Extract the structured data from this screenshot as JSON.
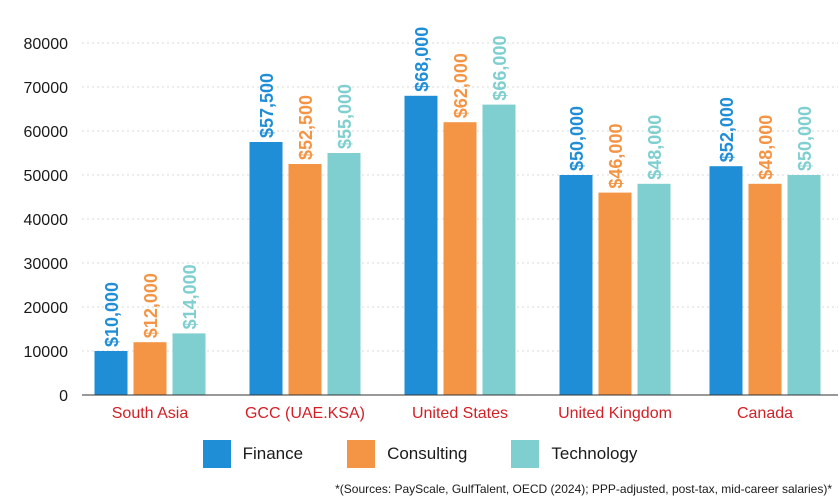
{
  "chart_data": {
    "type": "bar",
    "categories": [
      "South Asia",
      "GCC (UAE.KSA)",
      "United States",
      "United Kingdom",
      "Canada"
    ],
    "series": [
      {
        "name": "Finance",
        "color": "#1f8ed6",
        "values": [
          10000,
          57500,
          68000,
          50000,
          52000
        ],
        "labels": [
          "$10,000",
          "$57,500",
          "$68,000",
          "$50,000",
          "$52,000"
        ]
      },
      {
        "name": "Consulting",
        "color": "#f39545",
        "values": [
          12000,
          52500,
          62000,
          46000,
          48000
        ],
        "labels": [
          "$12,000",
          "$52,500",
          "$62,000",
          "$46,000",
          "$48,000"
        ]
      },
      {
        "name": "Technology",
        "color": "#7fcfd0",
        "values": [
          14000,
          55000,
          66000,
          48000,
          50000
        ],
        "labels": [
          "$14,000",
          "$55,000",
          "$66,000",
          "$48,000",
          "$50,000"
        ]
      }
    ],
    "yticks": [
      "0",
      "10000",
      "20000",
      "30000",
      "40000",
      "50000",
      "60000",
      "70000",
      "80000"
    ],
    "ylim": [
      0,
      80000
    ],
    "grid": true,
    "legend_position": "bottom-center",
    "category_label_color": "#d22027",
    "source_note": "*(Sources: PayScale, GulfTalent, OECD (2024); PPP-adjusted, post-tax, mid-career salaries)*"
  }
}
